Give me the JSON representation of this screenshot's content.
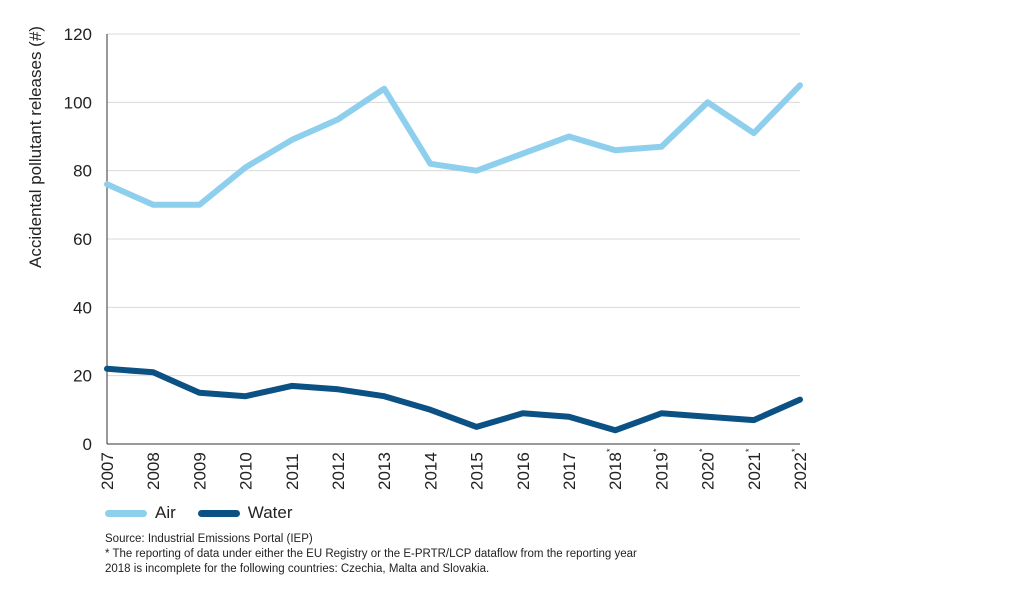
{
  "chart_data": {
    "type": "line",
    "ylabel": "Accidental pollutant releases (#)",
    "ylim": [
      0,
      120
    ],
    "yticks": [
      0,
      20,
      40,
      60,
      80,
      100,
      120
    ],
    "grid": true,
    "categories": [
      "2007",
      "2008",
      "2009",
      "2010",
      "2011",
      "2012",
      "2013",
      "2014",
      "2015",
      "2016",
      "2017",
      "2018",
      "2019",
      "2020",
      "2021",
      "2022"
    ],
    "category_marks": [
      "",
      "",
      "",
      "",
      "",
      "",
      "",
      "",
      "",
      "",
      "",
      "*",
      "*",
      "*",
      "*",
      "*"
    ],
    "series": [
      {
        "name": "Air",
        "color": "#8ecfee",
        "values": [
          76,
          70,
          70,
          81,
          89,
          95,
          104,
          82,
          80,
          85,
          90,
          86,
          87,
          100,
          91,
          105
        ]
      },
      {
        "name": "Water",
        "color": "#0b5184",
        "values": [
          22,
          21,
          15,
          14,
          17,
          16,
          14,
          10,
          5,
          9,
          8,
          4,
          9,
          8,
          7,
          13
        ]
      }
    ],
    "legend": [
      "Air",
      "Water"
    ]
  },
  "notes": {
    "source": "Source: Industrial Emissions Portal (IEP)",
    "footnote_line1": "* The reporting of data under either the EU Registry or the E-PRTR/LCP dataflow from the reporting year",
    "footnote_line2": "2018 is incomplete for the following countries: Czechia, Malta and Slovakia."
  }
}
